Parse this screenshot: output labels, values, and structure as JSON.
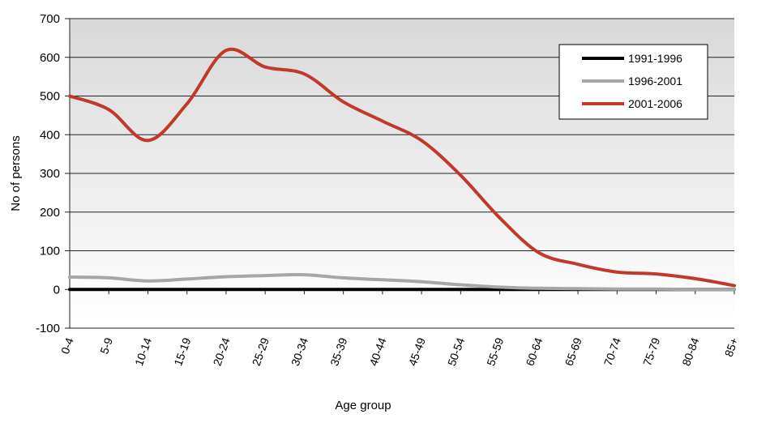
{
  "chart_data": {
    "type": "line",
    "title": "",
    "xlabel": "Age group",
    "ylabel": "No of persons",
    "ylim": [
      -100,
      700
    ],
    "yticks": [
      -100,
      0,
      100,
      200,
      300,
      400,
      500,
      600,
      700
    ],
    "yticks_labels": [
      "-100",
      "0",
      "100",
      "200",
      "300",
      "400",
      "500",
      "600",
      "700"
    ],
    "grid": true,
    "legend_position": "top-right",
    "categories": [
      "0-4",
      "5-9",
      "10-14",
      "15-19",
      "20-24",
      "25-29",
      "30-34",
      "35-39",
      "40-44",
      "45-49",
      "50-54",
      "55-59",
      "60-64",
      "65-69",
      "70-74",
      "75-79",
      "80-84",
      "85+"
    ],
    "series": [
      {
        "name": "1991-1996",
        "color": "#000000",
        "values": [
          0,
          0,
          0,
          0,
          0,
          0,
          0,
          0,
          0,
          0,
          0,
          0,
          0,
          0,
          0,
          0,
          0,
          0
        ]
      },
      {
        "name": "1996-2001",
        "color": "#a6a6a6",
        "values": [
          32,
          30,
          22,
          27,
          33,
          36,
          38,
          30,
          25,
          20,
          12,
          6,
          3,
          2,
          1,
          1,
          0,
          0
        ]
      },
      {
        "name": "2001-2006",
        "color": "#c0392b",
        "values": [
          500,
          465,
          385,
          480,
          618,
          575,
          557,
          485,
          435,
          385,
          295,
          185,
          95,
          65,
          45,
          40,
          28,
          10
        ]
      }
    ]
  }
}
